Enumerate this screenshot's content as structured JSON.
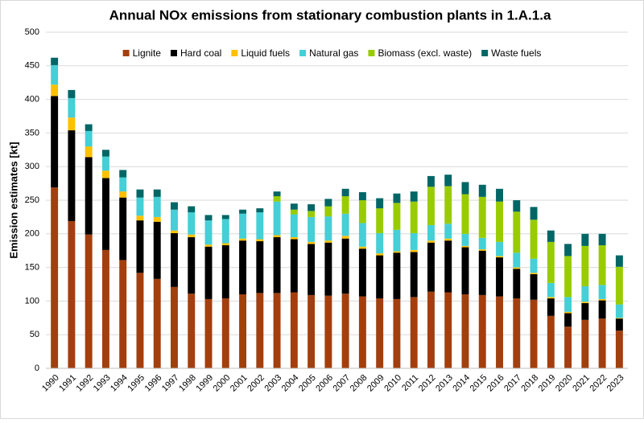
{
  "chart_data": {
    "type": "stacked_bar",
    "title": "Annual NOx emissions from stationary combustion plants in 1.A.1.a",
    "y_label": "Emission estimates [kt]",
    "categories": [
      "1990",
      "1991",
      "1992",
      "1993",
      "1994",
      "1995",
      "1996",
      "1997",
      "1998",
      "1999",
      "2000",
      "2001",
      "2002",
      "2003",
      "2004",
      "2005",
      "2006",
      "2007",
      "2008",
      "2009",
      "2010",
      "2011",
      "2012",
      "2013",
      "2014",
      "2015",
      "2016",
      "2017",
      "2018",
      "2019",
      "2020",
      "2021",
      "2022",
      "2023"
    ],
    "series": [
      {
        "name": "Lignite",
        "color": "#a33f0e",
        "values": [
          269,
          219,
          199,
          176,
          161,
          142,
          133,
          121,
          111,
          103,
          104,
          110,
          112,
          112,
          113,
          109,
          108,
          111,
          107,
          104,
          103,
          106,
          114,
          113,
          110,
          109,
          107,
          104,
          102,
          78,
          62,
          72,
          74,
          56
        ]
      },
      {
        "name": "Hard coal",
        "color": "#000000",
        "values": [
          136,
          135,
          115,
          107,
          93,
          78,
          85,
          80,
          84,
          78,
          79,
          80,
          77,
          83,
          79,
          76,
          79,
          82,
          71,
          64,
          69,
          67,
          73,
          77,
          70,
          66,
          58,
          44,
          38,
          26,
          20,
          25,
          27,
          18
        ]
      },
      {
        "name": "Liquid fuels",
        "color": "#ffc000",
        "values": [
          17,
          19,
          16,
          11,
          9,
          7,
          7,
          4,
          4,
          3,
          3,
          3,
          3,
          3,
          3,
          3,
          3,
          4,
          3,
          3,
          2,
          3,
          3,
          3,
          2,
          2,
          2,
          2,
          2,
          2,
          2,
          2,
          2,
          1
        ]
      },
      {
        "name": "Natural gas",
        "color": "#45cfd6",
        "values": [
          29,
          29,
          23,
          21,
          21,
          27,
          30,
          31,
          33,
          36,
          36,
          37,
          40,
          50,
          34,
          37,
          36,
          33,
          35,
          30,
          32,
          25,
          23,
          22,
          18,
          17,
          21,
          22,
          21,
          21,
          22,
          23,
          21,
          20
        ]
      },
      {
        "name": "Biomass (excl. waste)",
        "color": "#99cc00",
        "values": [
          0,
          0,
          0,
          0,
          0,
          0,
          0,
          0,
          0,
          0,
          0,
          0,
          0,
          8,
          7,
          9,
          15,
          26,
          34,
          37,
          40,
          47,
          57,
          56,
          59,
          61,
          60,
          61,
          58,
          61,
          61,
          60,
          59,
          56
        ]
      },
      {
        "name": "Waste fuels",
        "color": "#006666",
        "values": [
          11,
          12,
          10,
          10,
          11,
          12,
          11,
          11,
          9,
          8,
          6,
          6,
          6,
          7,
          9,
          10,
          11,
          11,
          12,
          15,
          14,
          15,
          16,
          17,
          18,
          18,
          19,
          17,
          19,
          17,
          18,
          18,
          17,
          17
        ]
      }
    ],
    "ylim": [
      0,
      500
    ],
    "yticks": [
      0,
      50,
      100,
      150,
      200,
      250,
      300,
      350,
      400,
      450,
      500
    ],
    "grid": true,
    "legend": "top"
  }
}
